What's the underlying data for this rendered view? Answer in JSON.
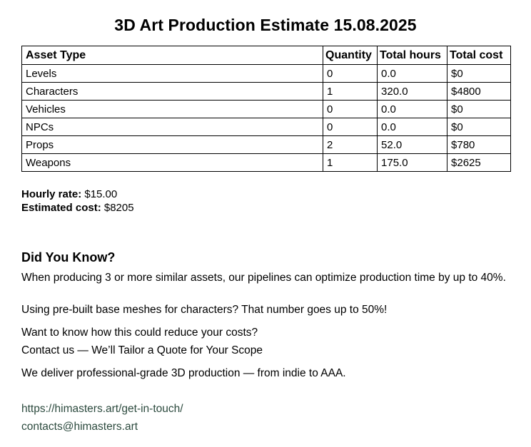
{
  "title": "3D Art Production Estimate 15.08.2025",
  "table": {
    "headers": {
      "asset_type": "Asset Type",
      "quantity": "Quantity",
      "total_hours": "Total hours",
      "total_cost": "Total cost"
    },
    "rows": [
      {
        "asset": "Levels",
        "quantity": "0",
        "hours": "0.0",
        "cost": "$0"
      },
      {
        "asset": "Characters",
        "quantity": "1",
        "hours": "320.0",
        "cost": "$4800"
      },
      {
        "asset": "Vehicles",
        "quantity": "0",
        "hours": "0.0",
        "cost": "$0"
      },
      {
        "asset": "NPCs",
        "quantity": "0",
        "hours": "0.0",
        "cost": "$0"
      },
      {
        "asset": "Props",
        "quantity": "2",
        "hours": "52.0",
        "cost": "$780"
      },
      {
        "asset": "Weapons",
        "quantity": "1",
        "hours": "175.0",
        "cost": "$2625"
      }
    ]
  },
  "summary": {
    "hourly_rate_label": "Hourly rate:",
    "hourly_rate_value": "$15.00",
    "estimated_cost_label": "Estimated cost:",
    "estimated_cost_value": "$8205"
  },
  "did_you_know": {
    "heading": "Did You Know?",
    "p1": "When producing 3 or more similar assets, our pipelines can optimize production time by up to 40%.",
    "p2": "Using pre-built base meshes for characters? That number goes up to 50%!",
    "p3": "Want to know how this could reduce your costs?",
    "p4": "Contact us — We’ll Tailor a Quote for Your Scope",
    "p5": "We deliver professional-grade 3D production — from indie to AAA."
  },
  "contact": {
    "url": "https://himasters.art/get-in-touch/",
    "email": "contacts@himasters.art"
  }
}
